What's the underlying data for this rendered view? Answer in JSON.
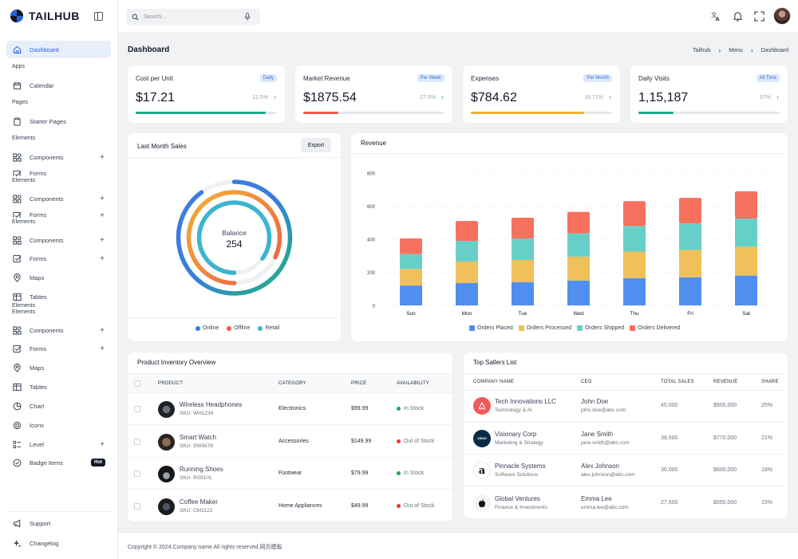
{
  "brand": {
    "name": "TAILHUB"
  },
  "sidebar": {
    "items": [
      {
        "type": "item",
        "label": "Dashboard",
        "icon": "home-icon",
        "active": true,
        "top": 51
      },
      {
        "type": "section",
        "label": "Apps",
        "top": 80
      },
      {
        "type": "item",
        "label": "Calendar",
        "icon": "calendar-icon",
        "top": 96
      },
      {
        "type": "section",
        "label": "Pages",
        "top": 125
      },
      {
        "type": "item",
        "label": "Starter Pages",
        "icon": "clipboard-icon",
        "top": 141
      },
      {
        "type": "section",
        "label": "Elements",
        "top": 170
      },
      {
        "type": "item",
        "label": "Components",
        "icon": "grid-icon",
        "plus": true,
        "top": 186
      },
      {
        "type": "item",
        "label": "Forms",
        "icon": "checkbox-icon",
        "plus": false,
        "top": 209,
        "clip": true
      },
      {
        "type": "section",
        "label": "Elements",
        "top": 223
      },
      {
        "type": "item",
        "label": "Components",
        "icon": "grid-icon",
        "plus": true,
        "top": 238
      },
      {
        "type": "item",
        "label": "Forms",
        "icon": "checkbox-icon",
        "plus": true,
        "top": 261,
        "clip": true
      },
      {
        "type": "section",
        "label": "Elements",
        "top": 275
      },
      {
        "type": "item",
        "label": "Components",
        "icon": "grid-icon",
        "plus": true,
        "top": 290
      },
      {
        "type": "item",
        "label": "Forms",
        "icon": "checkbox-icon",
        "plus": true,
        "top": 313
      },
      {
        "type": "item",
        "label": "Maps",
        "icon": "map-pin-icon",
        "top": 337
      },
      {
        "type": "item",
        "label": "Tables",
        "icon": "table-icon",
        "top": 361
      },
      {
        "type": "section",
        "label": "Elements",
        "top": 380
      },
      {
        "type": "section",
        "label": "Elements",
        "top": 388
      },
      {
        "type": "item",
        "label": "Components",
        "icon": "grid-icon",
        "plus": true,
        "top": 403
      },
      {
        "type": "item",
        "label": "Forms",
        "icon": "checkbox-icon",
        "plus": true,
        "top": 426
      },
      {
        "type": "item",
        "label": "Maps",
        "icon": "map-pin-icon",
        "top": 450
      },
      {
        "type": "item",
        "label": "Tables",
        "icon": "table-icon",
        "top": 474
      },
      {
        "type": "item",
        "label": "Chart",
        "icon": "chart-icon",
        "top": 498
      },
      {
        "type": "item",
        "label": "Icons",
        "icon": "icons-icon",
        "top": 522
      },
      {
        "type": "item",
        "label": "Level",
        "icon": "level-icon",
        "plus": true,
        "top": 546
      },
      {
        "type": "item",
        "label": "Badge Items",
        "icon": "badge-icon",
        "badge": "Hot",
        "top": 569
      }
    ],
    "bottom": [
      {
        "label": "Support",
        "icon": "megaphone-icon",
        "top": 645
      },
      {
        "label": "Changelog",
        "icon": "sparkle-icon",
        "top": 670
      }
    ]
  },
  "topbar": {
    "search_placeholder": "Search..."
  },
  "page": {
    "title": "Dashboard",
    "breadcrumbs": [
      "Tailhub",
      "Menu",
      "Dashboard"
    ]
  },
  "kpis": [
    {
      "title": "Cost per Unit",
      "badge": "Daily",
      "value": "$17.21",
      "pct": "12.5%",
      "progress": 0.92,
      "color": "#1fa98a"
    },
    {
      "title": "Market Revenue",
      "badge": "Per Week",
      "value": "$1875.54",
      "pct": "27.5%",
      "progress": 0.25,
      "color": "#ee5a47"
    },
    {
      "title": "Expenses",
      "badge": "Per Month",
      "value": "$784.62",
      "pct": "18.71%",
      "progress": 0.8,
      "color": "#f2b234"
    },
    {
      "title": "Daily Visits",
      "badge": "All Time",
      "value": "1,15,187",
      "pct": "57%",
      "progress": 0.25,
      "color": "#1fa98a"
    }
  ],
  "last_month_sales": {
    "title": "Last Month Sales",
    "export_label": "Export",
    "center_label": "Balance",
    "center_value": "254",
    "rings": [
      {
        "name": "Online",
        "color": "#3b7ddd",
        "fraction": 0.9
      },
      {
        "name": "Offline",
        "color": "#ee5a47",
        "fraction": 0.82
      },
      {
        "name": "Retail",
        "color": "#3cb5d0",
        "fraction": 0.85
      }
    ],
    "legend": [
      "Online",
      "Offline",
      "Retail"
    ]
  },
  "chart_data": {
    "type": "bar",
    "stacked": true,
    "title": "Revenue",
    "categories": [
      "Sun",
      "Mon",
      "Tue",
      "Wed",
      "Thu",
      "Fri",
      "Sat"
    ],
    "series": [
      {
        "name": "Orders Placed",
        "color": "#4f8ff0",
        "values": [
          120,
          135,
          140,
          150,
          165,
          170,
          180
        ]
      },
      {
        "name": "Orders Processed",
        "color": "#f0c05a",
        "values": [
          100,
          130,
          135,
          145,
          160,
          165,
          175
        ]
      },
      {
        "name": "Orders Shipped",
        "color": "#66d0c8",
        "values": [
          90,
          125,
          130,
          140,
          155,
          160,
          170
        ]
      },
      {
        "name": "Orders Delivered",
        "color": "#f7705e",
        "values": [
          95,
          120,
          125,
          130,
          150,
          155,
          165
        ]
      }
    ],
    "yticks": [
      0,
      200,
      400,
      600,
      800
    ],
    "ylim": [
      0,
      800
    ],
    "legend_position": "bottom"
  },
  "inventory": {
    "title": "Product Inventory Overview",
    "headers": [
      "PRODUCT",
      "CATEGORY",
      "PRICE",
      "AVAILABILITY"
    ],
    "rows": [
      {
        "name": "Wireless Headphones",
        "sku": "SKU: WH1234",
        "category": "Electronics",
        "price": "$99.99",
        "availability": "In Stock",
        "status_color": "#22a755"
      },
      {
        "name": "Smart Watch",
        "sku": "SKU: SW5678",
        "category": "Accessories",
        "price": "$149.99",
        "availability": "Out of Stock",
        "status_color": "#e53935"
      },
      {
        "name": "Running Shoes",
        "sku": "SKU: RS9101",
        "category": "Footwear",
        "price": "$79.99",
        "availability": "In Stock",
        "status_color": "#22a755"
      },
      {
        "name": "Coffee Maker",
        "sku": "SKU: CM1122",
        "category": "Home Appliances",
        "price": "$49.99",
        "availability": "Out of Stock",
        "status_color": "#e53935"
      }
    ]
  },
  "sellers": {
    "title": "Top Sallers List",
    "headers": [
      "COMPANY NAME",
      "CEO",
      "TOTAL SALES",
      "REVENUE",
      "SHARE"
    ],
    "rows": [
      {
        "company": "Tech Innovations LLC",
        "category": "Technology & AI",
        "ceo": "John Doe",
        "email": "john.doe@abc.com",
        "sales": "45,000",
        "revenue": "$900,000",
        "share": "25%",
        "logo": "airbnb-logo",
        "logo_color": "#f05a5b"
      },
      {
        "company": "Visionary Corp",
        "category": "Marketing & Strategy",
        "ceo": "Jane Smith",
        "email": "jane.smith@abc.com",
        "sales": "38,500",
        "revenue": "$770,000",
        "share": "21%",
        "logo": "cisco-logo",
        "logo_text": "cisco",
        "logo_color": "#0b2a45"
      },
      {
        "company": "Pinnacle Systems",
        "category": "Software Solutions",
        "ceo": "Alex Johnson",
        "email": "alex.johnson@abc.com",
        "sales": "30,000",
        "revenue": "$600,000",
        "share": "18%",
        "logo": "amazon-logo",
        "logo_text": "a",
        "logo_color": "#ffffff"
      },
      {
        "company": "Global Ventures",
        "category": "Finance & Investments",
        "ceo": "Emma Lee",
        "email": "emma.lee@abc.com",
        "sales": "27,500",
        "revenue": "$550,000",
        "share": "15%",
        "logo": "apple-logo",
        "logo_color": "#f3f4f6"
      }
    ]
  },
  "footer": {
    "text": "Copyright © 2024.Company name All rights reserved.网页模板"
  }
}
